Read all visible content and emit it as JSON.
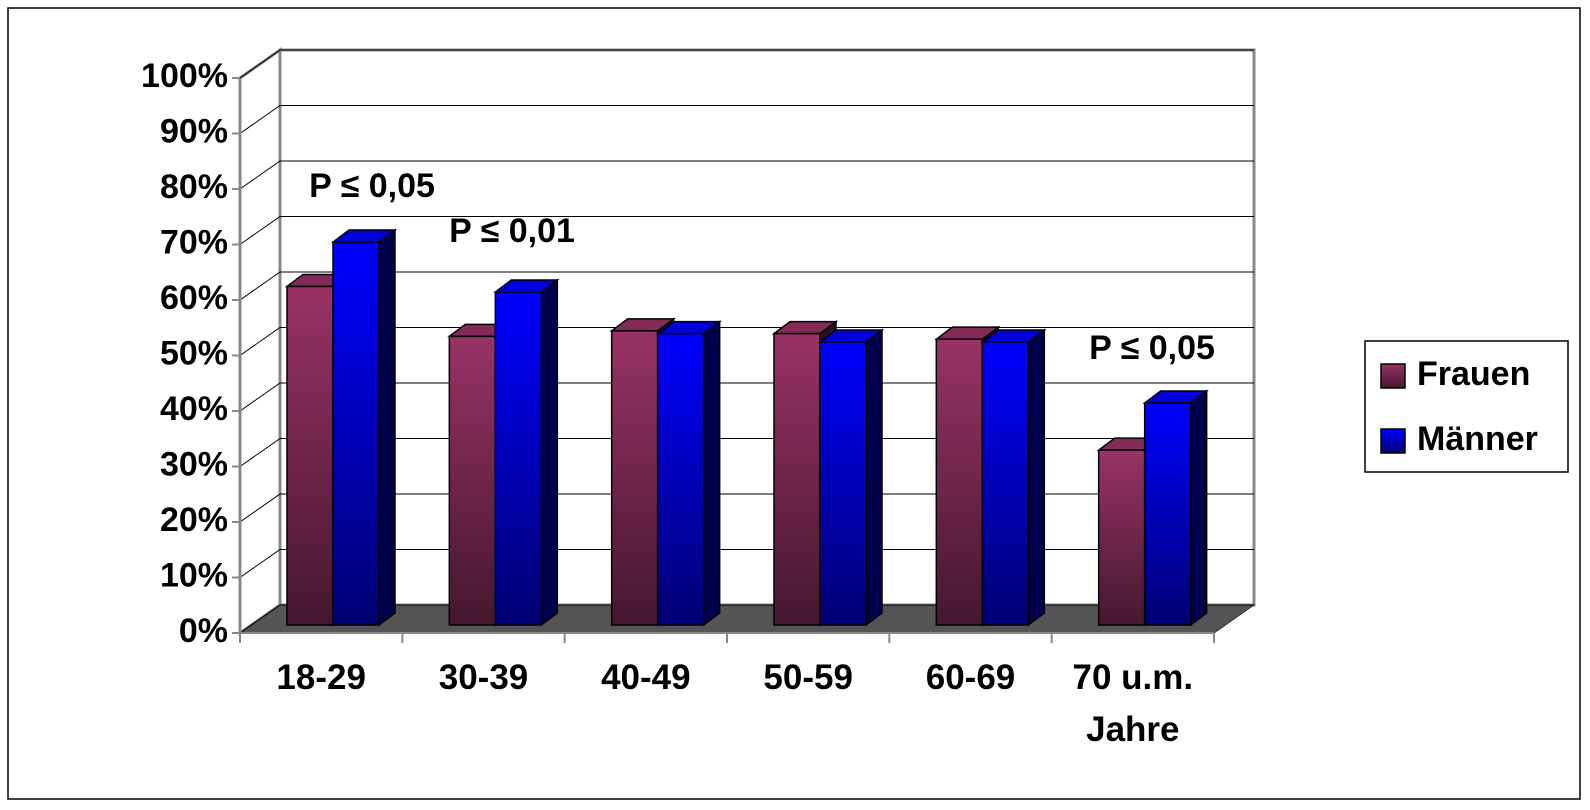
{
  "chart_data": {
    "type": "bar3d",
    "categories": [
      "18-29",
      "30-39",
      "40-49",
      "50-59",
      "60-69",
      "70 u.m. Jahre"
    ],
    "series": [
      {
        "name": "Frauen",
        "color": "#993366",
        "values": [
          61,
          52,
          53,
          52.5,
          51.5,
          31.5
        ]
      },
      {
        "name": "Männer",
        "color": "#0000ff",
        "values": [
          69,
          60,
          52.5,
          51,
          51,
          40
        ]
      }
    ],
    "ylim": [
      0,
      100
    ],
    "yticks": [
      {
        "value": 0,
        "label": "0%"
      },
      {
        "value": 10,
        "label": "10%"
      },
      {
        "value": 20,
        "label": "20%"
      },
      {
        "value": 30,
        "label": "30%"
      },
      {
        "value": 40,
        "label": "40%"
      },
      {
        "value": 50,
        "label": "50%"
      },
      {
        "value": 60,
        "label": "60%"
      },
      {
        "value": 70,
        "label": "70%"
      },
      {
        "value": 80,
        "label": "80%"
      },
      {
        "value": 90,
        "label": "90%"
      },
      {
        "value": 100,
        "label": "100%"
      }
    ],
    "grid": true,
    "legend": "right",
    "annotations": [
      "P ≤ 0,05",
      "P ≤ 0,01",
      "P ≤ 0,05"
    ]
  }
}
